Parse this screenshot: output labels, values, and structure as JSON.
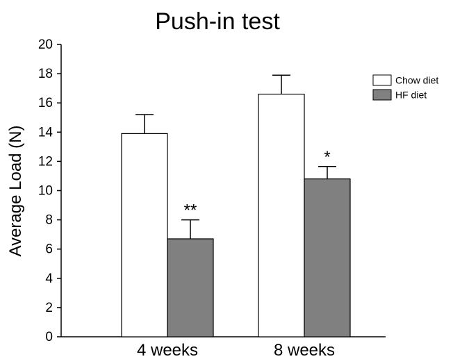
{
  "chart_data": {
    "type": "bar",
    "title": "Push-in test",
    "xlabel": "",
    "ylabel": "Average Load (N)",
    "ylim": [
      0,
      20
    ],
    "yticks": [
      0,
      2,
      4,
      6,
      8,
      10,
      12,
      14,
      16,
      18,
      20
    ],
    "categories": [
      "4 weeks",
      "8 weeks"
    ],
    "series": [
      {
        "name": "Chow diet",
        "color": "#ffffff",
        "values": [
          13.9,
          16.6
        ],
        "errors": [
          1.3,
          1.3
        ],
        "significance": [
          "",
          ""
        ]
      },
      {
        "name": "HF diet",
        "color": "#808080",
        "values": [
          6.7,
          10.8
        ],
        "errors": [
          1.3,
          0.85
        ],
        "significance": [
          "**",
          "*"
        ]
      }
    ],
    "legend": "top-right",
    "grid": false
  }
}
